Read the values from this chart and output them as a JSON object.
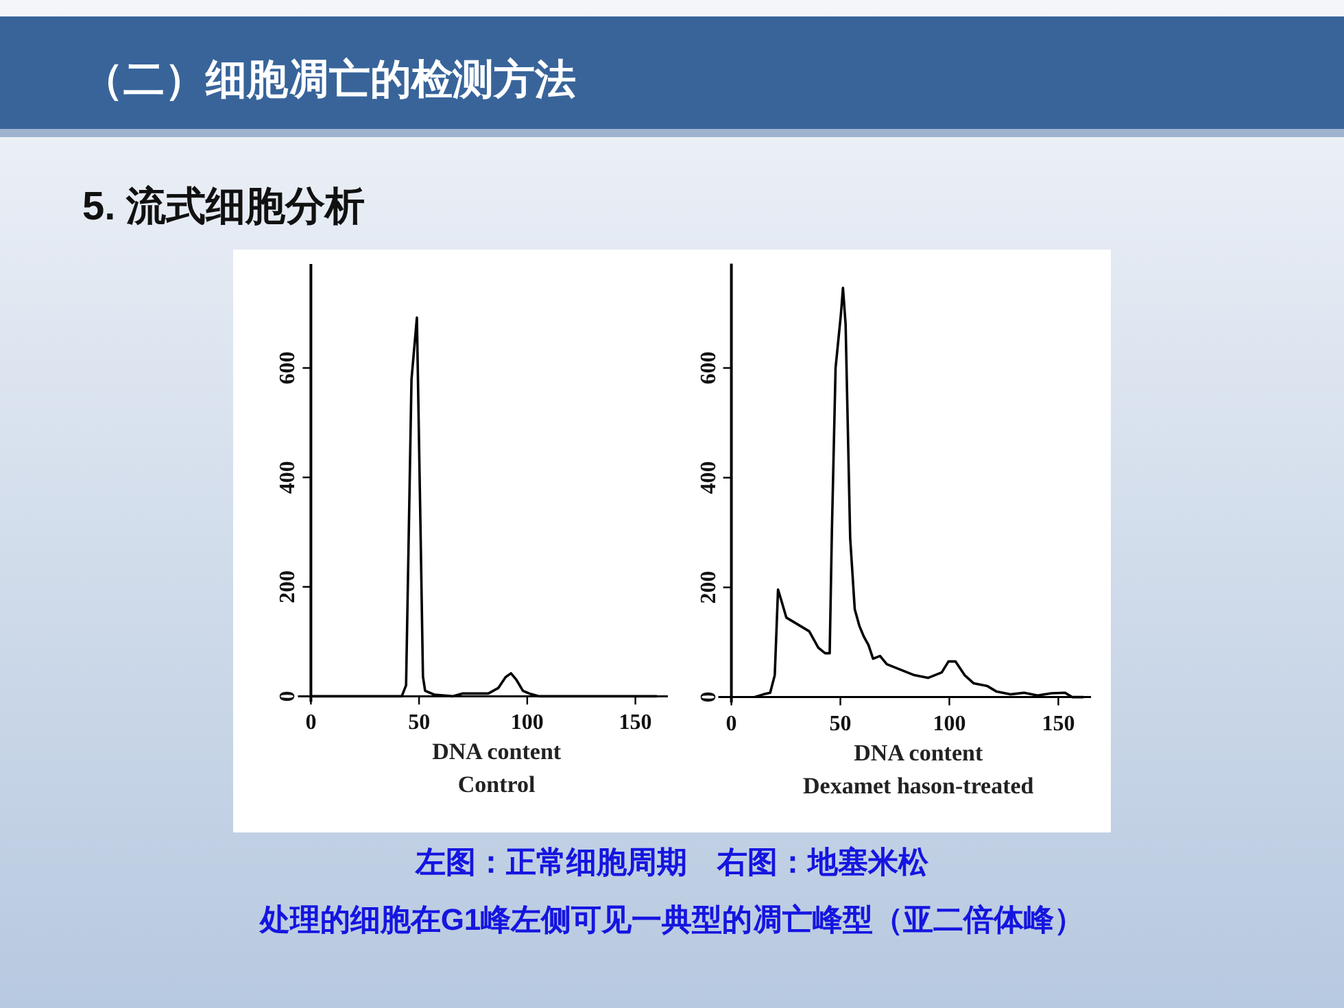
{
  "chart_data": [
    {
      "type": "line",
      "xlabel": "DNA content",
      "annotations": [
        "Control"
      ],
      "xlim": [
        -6,
        165
      ],
      "ylim": [
        0,
        790
      ],
      "xticks": [
        0,
        50,
        100,
        150
      ],
      "yticks": [
        0,
        200,
        400,
        600
      ],
      "grid": false,
      "marker": "none",
      "line_style": "solid",
      "series": [
        {
          "color": "#000000",
          "x": [
            0,
            42,
            44,
            46.5,
            49,
            50.7,
            51.8,
            52.8,
            57,
            65.5,
            70,
            82,
            86.6,
            90,
            92.5,
            95,
            98,
            101,
            105.6,
            160
          ],
          "values": [
            0,
            0,
            20,
            579,
            692,
            300,
            36,
            10,
            3,
            0,
            5,
            5,
            15,
            35,
            42,
            30,
            10,
            5,
            0,
            0
          ]
        }
      ]
    },
    {
      "type": "line",
      "xlabel": "DNA content",
      "annotations": [
        "Dexamet hason-treated"
      ],
      "xlim": [
        -6,
        165
      ],
      "ylim": [
        0,
        790
      ],
      "xticks": [
        0,
        50,
        100,
        150
      ],
      "yticks": [
        0,
        200,
        400,
        600
      ],
      "grid": false,
      "marker": "none",
      "line_style": "solid",
      "series": [
        {
          "color": "#000000",
          "x": [
            10.5,
            14.7,
            17.8,
            19.9,
            21.4,
            23,
            25.2,
            29.4,
            33.6,
            35.7,
            39.9,
            43,
            45.1,
            46.1,
            47.8,
            50.3,
            51.2,
            52.4,
            54.5,
            56.6,
            58.7,
            60.8,
            62.9,
            65,
            68.2,
            71.3,
            77.6,
            83.9,
            90.2,
            96.5,
            99.6,
            102.8,
            107,
            111.2,
            117.5,
            121.7,
            128,
            134.3,
            140.5,
            146.8,
            153.1,
            156.3,
            161.5
          ],
          "values": [
            0,
            5,
            8,
            40,
            196,
            175,
            145,
            135,
            125,
            120,
            90,
            80,
            80,
            300,
            600,
            700,
            746,
            680,
            290,
            160,
            130,
            110,
            95,
            70,
            75,
            60,
            50,
            40,
            35,
            45,
            65,
            65,
            40,
            25,
            20,
            10,
            5,
            8,
            3,
            7,
            8,
            0,
            0
          ]
        }
      ]
    },
    {
      "type": "other",
      "title": "（二）细胞凋亡的检测方法",
      "subtitle": "5. 流式细胞分析",
      "annotations": [
        "左图：正常细胞周期　右图：地塞米松",
        "处理的细胞在G1峰左侧可见一典型的凋亡峰型（亚二倍体峰）"
      ]
    }
  ]
}
